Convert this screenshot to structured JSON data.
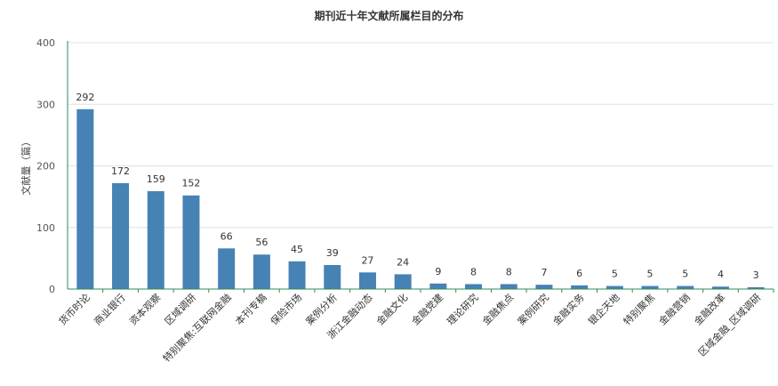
{
  "chart_data": {
    "type": "bar",
    "title": "期刊近十年文献所属栏目的分布",
    "xlabel": "",
    "ylabel": "文献量（篇）",
    "ylim": [
      0,
      400
    ],
    "yticks": [
      0,
      100,
      200,
      300,
      400
    ],
    "grid": true,
    "legend": "none",
    "colors": {
      "bar": "#4682b4",
      "axis": "#2e8b57",
      "grid": "#e0e0e0"
    },
    "categories": [
      "货币时论",
      "商业银行",
      "资本观察",
      "区域调研",
      "特别聚焦:互联网金融",
      "本刊专稿",
      "保险市场",
      "案例分析",
      "浙江金融动态",
      "金融文化",
      "金融党建",
      "理论研究",
      "金融焦点",
      "案例研究",
      "金融实务",
      "银企天地",
      "特别聚焦",
      "金融营销",
      "金融改革",
      "区域金融_区域调研"
    ],
    "values": [
      292,
      172,
      159,
      152,
      66,
      56,
      45,
      39,
      27,
      24,
      9,
      8,
      8,
      7,
      6,
      5,
      5,
      5,
      4,
      3
    ]
  }
}
